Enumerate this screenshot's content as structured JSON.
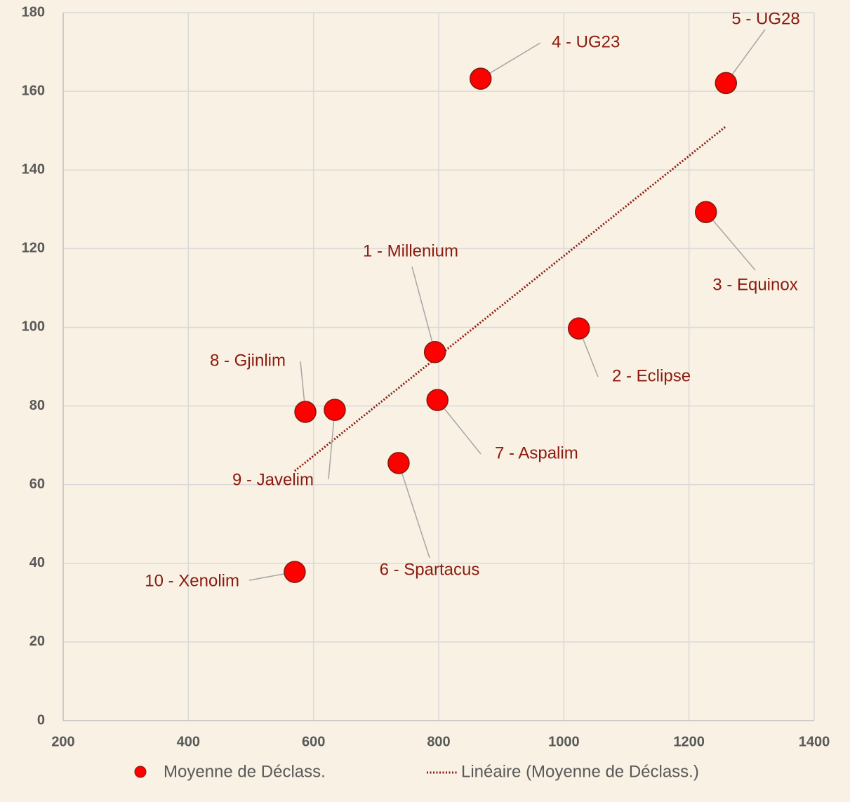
{
  "chart_data": {
    "type": "scatter",
    "x": [
      794,
      1024,
      1227,
      867,
      1259,
      736,
      798,
      587,
      634,
      570
    ],
    "series": [
      {
        "name": "Moyenne de Déclass.",
        "color": "#ff0000",
        "values": [
          93.7,
          99.7,
          129.3,
          163.2,
          162.1,
          65.5,
          81.5,
          78.5,
          79,
          37.8
        ]
      }
    ],
    "point_labels": [
      "1 - Millenium",
      "2 - Eclipse",
      "3 - Equinox",
      "4 - UG23",
      "5 - UG28",
      "6 - Spartacus",
      "7 - Aspalim",
      "8 - Gjinlim",
      "9 - Javelim",
      "10 - Xenolim"
    ],
    "trendline": {
      "name": "Linéaire (Moyenne de Déclass.)",
      "color": "#8b1a0e",
      "type": "linear"
    },
    "xlim": [
      200,
      1400
    ],
    "xticks": [
      200,
      400,
      600,
      800,
      1000,
      1200,
      1400
    ],
    "ylim": [
      0,
      180
    ],
    "yticks": [
      0,
      20,
      40,
      60,
      80,
      100,
      120,
      140,
      160,
      180
    ],
    "grid": true,
    "legend": "bottom"
  }
}
